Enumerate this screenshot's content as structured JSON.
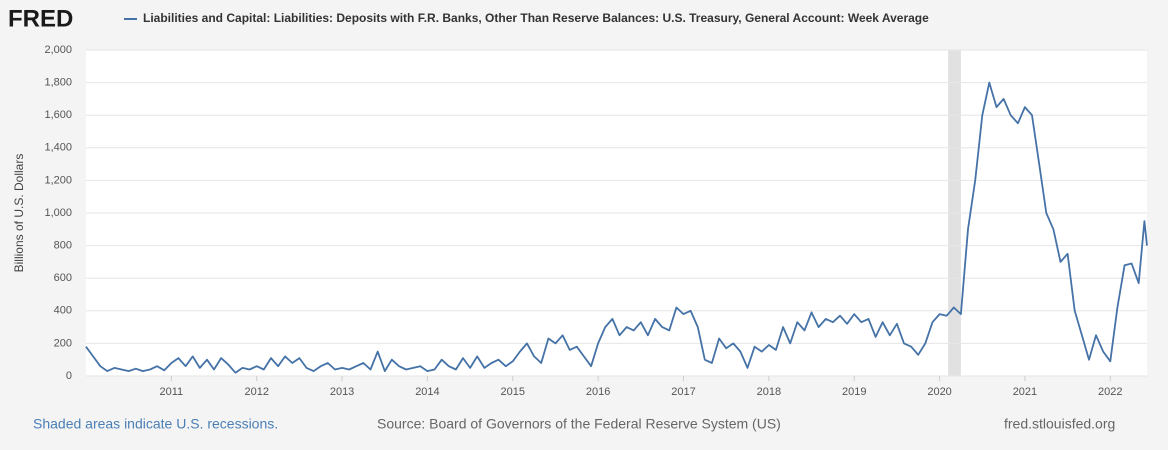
{
  "brand": "FRED",
  "chart_data": {
    "type": "line",
    "title": "Liabilities and Capital: Liabilities: Deposits with F.R. Banks, Other Than Reserve Balances: U.S. Treasury, General Account: Week Average",
    "y_label": "Billions of U.S. Dollars",
    "x": [
      2010,
      2010.083,
      2010.167,
      2010.25,
      2010.333,
      2010.417,
      2010.5,
      2010.583,
      2010.667,
      2010.75,
      2010.833,
      2010.917,
      2011,
      2011.083,
      2011.167,
      2011.25,
      2011.333,
      2011.417,
      2011.5,
      2011.583,
      2011.667,
      2011.75,
      2011.833,
      2011.917,
      2012,
      2012.083,
      2012.167,
      2012.25,
      2012.333,
      2012.417,
      2012.5,
      2012.583,
      2012.667,
      2012.75,
      2012.833,
      2012.917,
      2013,
      2013.083,
      2013.167,
      2013.25,
      2013.333,
      2013.417,
      2013.5,
      2013.583,
      2013.667,
      2013.75,
      2013.833,
      2013.917,
      2014,
      2014.083,
      2014.167,
      2014.25,
      2014.333,
      2014.417,
      2014.5,
      2014.583,
      2014.667,
      2014.75,
      2014.833,
      2014.917,
      2015,
      2015.083,
      2015.167,
      2015.25,
      2015.333,
      2015.417,
      2015.5,
      2015.583,
      2015.667,
      2015.75,
      2015.833,
      2015.917,
      2016,
      2016.083,
      2016.167,
      2016.25,
      2016.333,
      2016.417,
      2016.5,
      2016.583,
      2016.667,
      2016.75,
      2016.833,
      2016.917,
      2017,
      2017.083,
      2017.167,
      2017.25,
      2017.333,
      2017.417,
      2017.5,
      2017.583,
      2017.667,
      2017.75,
      2017.833,
      2017.917,
      2018,
      2018.083,
      2018.167,
      2018.25,
      2018.333,
      2018.417,
      2018.5,
      2018.583,
      2018.667,
      2018.75,
      2018.833,
      2018.917,
      2019,
      2019.083,
      2019.167,
      2019.25,
      2019.333,
      2019.417,
      2019.5,
      2019.583,
      2019.667,
      2019.75,
      2019.833,
      2019.917,
      2020,
      2020.083,
      2020.167,
      2020.25,
      2020.333,
      2020.417,
      2020.5,
      2020.583,
      2020.667,
      2020.75,
      2020.833,
      2020.917,
      2021,
      2021.083,
      2021.167,
      2021.25,
      2021.333,
      2021.417,
      2021.5,
      2021.583,
      2021.667,
      2021.75,
      2021.833,
      2021.917,
      2022,
      2022.083,
      2022.167,
      2022.25,
      2022.333,
      2022.4,
      2022.43
    ],
    "series": [
      {
        "name": "Liabilities and Capital: Liabilities: Deposits with F.R. Banks, Other Than Reserve Balances: U.S. Treasury, General Account: Week Average",
        "color": "#4572a7",
        "values": [
          180,
          120,
          60,
          30,
          50,
          40,
          30,
          45,
          30,
          40,
          60,
          35,
          80,
          110,
          60,
          120,
          50,
          100,
          40,
          110,
          70,
          20,
          50,
          40,
          60,
          40,
          110,
          60,
          120,
          80,
          110,
          50,
          30,
          60,
          80,
          40,
          50,
          40,
          60,
          80,
          40,
          150,
          30,
          100,
          60,
          40,
          50,
          60,
          30,
          40,
          100,
          60,
          40,
          110,
          50,
          120,
          50,
          80,
          100,
          60,
          90,
          150,
          200,
          120,
          80,
          230,
          200,
          250,
          160,
          180,
          120,
          60,
          200,
          300,
          350,
          250,
          300,
          280,
          330,
          250,
          350,
          300,
          280,
          420,
          380,
          400,
          300,
          100,
          80,
          230,
          170,
          200,
          150,
          50,
          180,
          150,
          190,
          160,
          300,
          200,
          330,
          280,
          390,
          300,
          350,
          330,
          370,
          320,
          380,
          330,
          350,
          240,
          330,
          250,
          320,
          200,
          180,
          130,
          200,
          330,
          380,
          370,
          420,
          380,
          900,
          1200,
          1600,
          1800,
          1650,
          1700,
          1600,
          1550,
          1650,
          1600,
          1300,
          1000,
          900,
          700,
          750,
          400,
          250,
          100,
          250,
          150,
          90,
          420,
          680,
          690,
          570,
          950,
          800
        ]
      }
    ],
    "recessions": [
      [
        2020.1,
        2020.25
      ]
    ],
    "xlim": [
      2010,
      2022.43
    ],
    "xticks": [
      2011,
      2012,
      2013,
      2014,
      2015,
      2016,
      2017,
      2018,
      2019,
      2020,
      2021,
      2022
    ],
    "ylim": [
      0,
      2000
    ],
    "yticks": [
      0,
      200,
      400,
      600,
      800,
      {
        "value": 1000,
        "label": "1,000"
      },
      {
        "value": 1200,
        "label": "1,200"
      },
      {
        "value": 1400,
        "label": "1,400"
      },
      {
        "value": 1600,
        "label": "1,600"
      },
      {
        "value": 1800,
        "label": "1,800"
      },
      {
        "value": 2000,
        "label": "2,000"
      }
    ],
    "grid": true
  },
  "footer": {
    "note": "Shaded areas indicate U.S. recessions.",
    "source": "Source: Board of Governors of the Federal Reserve System (US)",
    "site": "fred.stlouisfed.org"
  }
}
